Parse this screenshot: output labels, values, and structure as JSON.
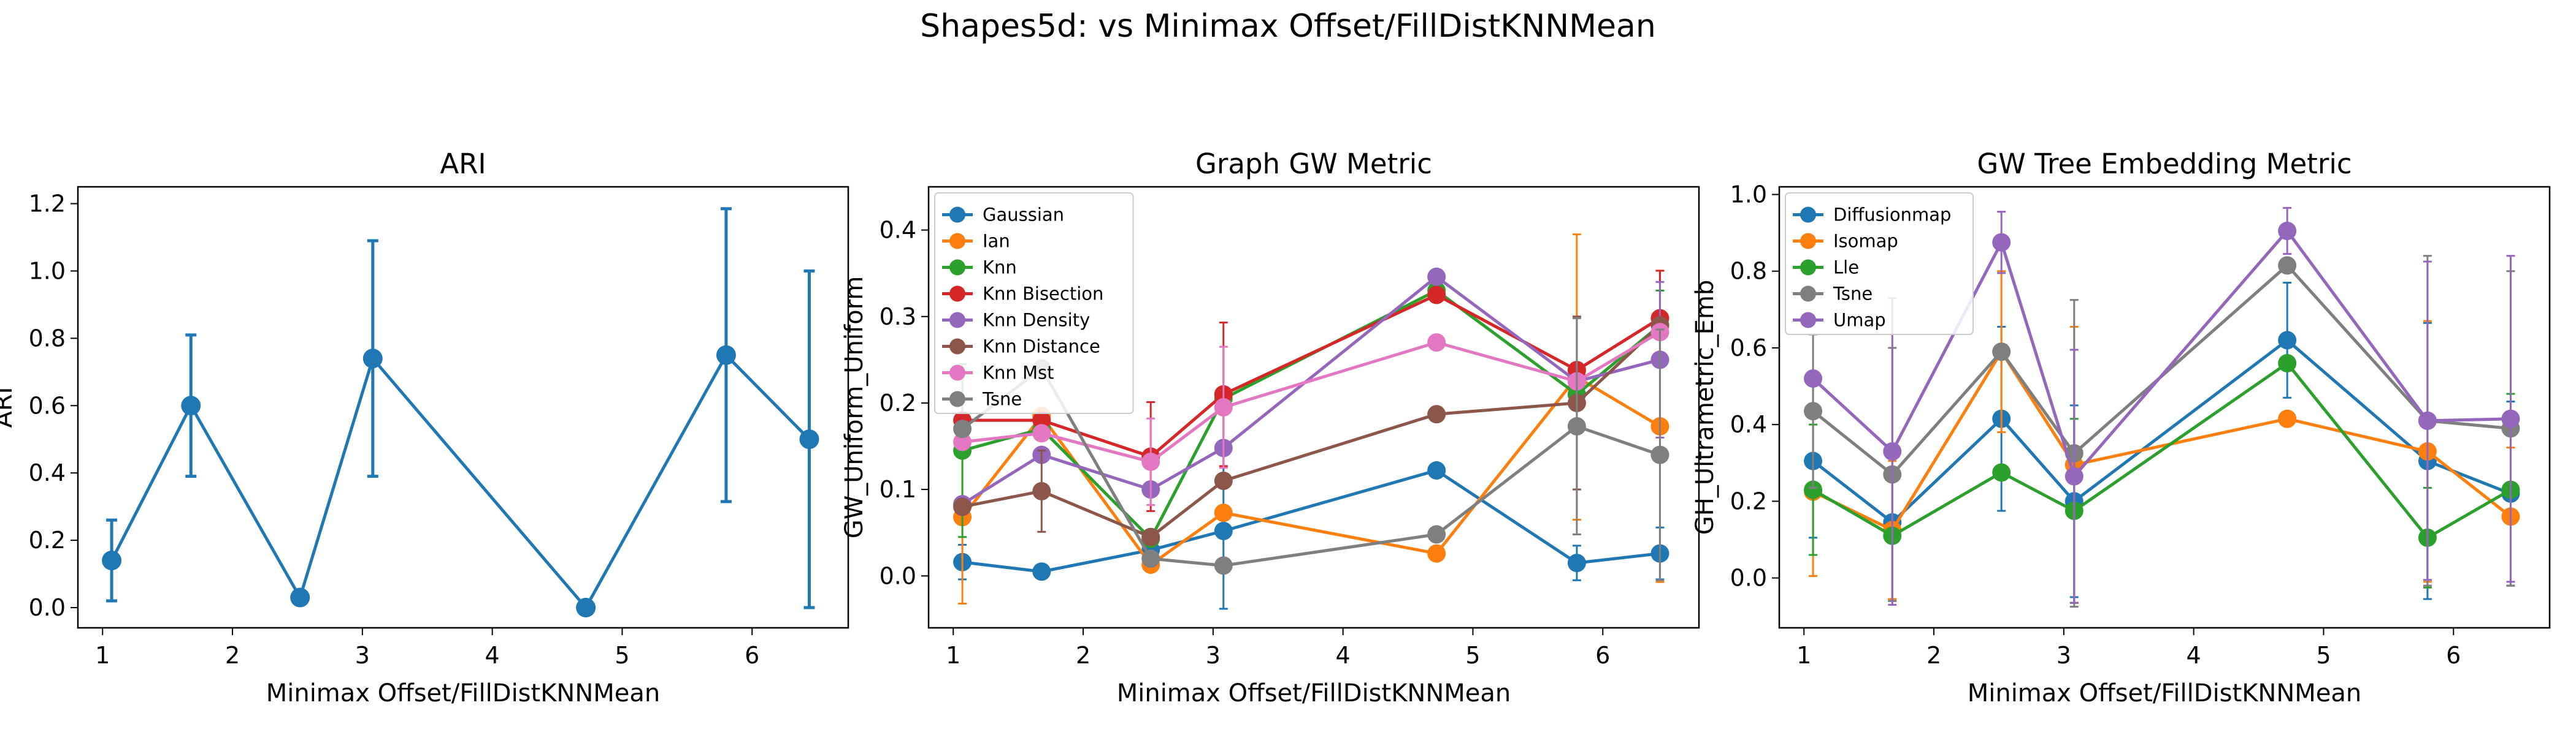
{
  "figure": {
    "title": "Shapes5d: vs Minimax Offset/FillDistKNNMean"
  },
  "colors": {
    "Gaussian": "#1f77b4",
    "Ian": "#ff7f0e",
    "Knn": "#2ca02c",
    "Knn Bisection": "#d62728",
    "Knn Density": "#9467bd",
    "Knn Distance": "#8c564b",
    "Knn Mst": "#e377c2",
    "Tsne": "#7f7f7f",
    "Diffusionmap": "#1f77b4",
    "Isomap": "#ff7f0e",
    "Lle": "#2ca02c",
    "Umap": "#9467bd",
    "single": "#1f77b4"
  },
  "chart_data": [
    {
      "type": "line",
      "title": "ARI",
      "xlabel": "Minimax Offset/FillDistKNNMean",
      "ylabel": "ARI",
      "xlim": [
        0.81,
        6.74
      ],
      "ylim": [
        -0.06,
        1.25
      ],
      "xticks": [
        1,
        2,
        3,
        4,
        5,
        6
      ],
      "yticks": [
        0.0,
        0.2,
        0.4,
        0.6,
        0.8,
        1.0,
        1.2
      ],
      "ytick_labels": [
        "0.0",
        "0.2",
        "0.4",
        "0.6",
        "0.8",
        "1.0",
        "1.2"
      ],
      "legend": null,
      "grid": false,
      "x": [
        1.07,
        1.68,
        2.52,
        3.08,
        4.72,
        5.8,
        6.44
      ],
      "series": [
        {
          "values": [
            0.14,
            0.6,
            0.03,
            0.74,
            0.0,
            0.75,
            0.5
          ],
          "err": [
            0.12,
            0.21,
            0.0,
            0.35,
            0.0,
            0.435,
            0.5
          ]
        }
      ]
    },
    {
      "type": "line",
      "title": "Graph GW Metric",
      "xlabel": "Minimax Offset/FillDistKNNMean",
      "ylabel": "GW_Uniform_Uniform",
      "xlim": [
        0.81,
        6.74
      ],
      "ylim": [
        -0.06,
        0.45
      ],
      "xticks": [
        1,
        2,
        3,
        4,
        5,
        6
      ],
      "yticks": [
        0.0,
        0.1,
        0.2,
        0.3,
        0.4
      ],
      "ytick_labels": [
        "0.0",
        "0.1",
        "0.2",
        "0.3",
        "0.4"
      ],
      "legend": "upper-left",
      "grid": false,
      "x": [
        1.07,
        1.68,
        2.52,
        3.08,
        4.72,
        5.8,
        6.44
      ],
      "series": [
        {
          "name": "Gaussian",
          "values": [
            0.016,
            0.005,
            0.03,
            0.052,
            0.122,
            0.015,
            0.026
          ],
          "err": [
            0.02,
            0.0,
            0.0,
            0.09,
            0.0,
            0.02,
            0.03
          ]
        },
        {
          "name": "Ian",
          "values": [
            0.068,
            0.185,
            0.013,
            0.073,
            0.026,
            0.23,
            0.173
          ],
          "err": [
            0.1,
            0.0,
            0.0,
            0.0,
            0.0,
            0.165,
            0.18
          ]
        },
        {
          "name": "Knn",
          "values": [
            0.145,
            0.17,
            0.043,
            0.205,
            0.33,
            0.21,
            0.29
          ],
          "err": [
            0.1,
            0.0,
            0.0,
            0.0,
            0.0,
            0.0,
            0.04
          ]
        },
        {
          "name": "Knn Bisection",
          "values": [
            0.18,
            0.18,
            0.138,
            0.21,
            0.325,
            0.238,
            0.298
          ],
          "err": [
            0.0,
            0.0,
            0.063,
            0.083,
            0.0,
            0.0,
            0.055
          ]
        },
        {
          "name": "Knn Density",
          "values": [
            0.083,
            0.14,
            0.1,
            0.148,
            0.346,
            0.225,
            0.25
          ],
          "err": [
            0.0,
            0.0,
            0.0,
            0.0,
            0.0,
            0.0,
            0.09
          ]
        },
        {
          "name": "Knn Distance",
          "values": [
            0.08,
            0.098,
            0.045,
            0.11,
            0.187,
            0.2,
            0.29
          ],
          "err": [
            0.0,
            0.047,
            0.0,
            0.0,
            0.0,
            0.1,
            0.0
          ]
        },
        {
          "name": "Knn Mst",
          "values": [
            0.155,
            0.165,
            0.132,
            0.195,
            0.27,
            0.225,
            0.282
          ],
          "err": [
            0.0,
            0.0,
            0.05,
            0.07,
            0.0,
            0.0,
            0.0
          ]
        },
        {
          "name": "Tsne",
          "values": [
            0.17,
            0.24,
            0.02,
            0.012,
            0.048,
            0.173,
            0.14
          ],
          "err": [
            0.0,
            0.0,
            0.0,
            0.0,
            0.0,
            0.125,
            0.145
          ]
        }
      ]
    },
    {
      "type": "line",
      "title": "GW Tree Embedding Metric",
      "xlabel": "Minimax Offset/FillDistKNNMean",
      "ylabel": "GH_Ultrametric_Emb",
      "xlim": [
        0.81,
        6.74
      ],
      "ylim": [
        -0.13,
        1.02
      ],
      "xticks": [
        1,
        2,
        3,
        4,
        5,
        6
      ],
      "yticks": [
        0.0,
        0.2,
        0.4,
        0.6,
        0.8,
        1.0
      ],
      "ytick_labels": [
        "0.0",
        "0.2",
        "0.4",
        "0.6",
        "0.8",
        "1.0"
      ],
      "legend": "upper-left",
      "grid": false,
      "x": [
        1.07,
        1.68,
        2.52,
        3.08,
        4.72,
        5.8,
        6.44
      ],
      "series": [
        {
          "name": "Diffusionmap",
          "values": [
            0.305,
            0.145,
            0.415,
            0.2,
            0.62,
            0.305,
            0.22
          ],
          "err": [
            0.2,
            0.0,
            0.24,
            0.25,
            0.15,
            0.36,
            0.24
          ]
        },
        {
          "name": "Isomap",
          "values": [
            0.225,
            0.125,
            0.59,
            0.295,
            0.415,
            0.33,
            0.16
          ],
          "err": [
            0.22,
            0.18,
            0.21,
            0.36,
            0.0,
            0.34,
            0.18
          ]
        },
        {
          "name": "Lle",
          "values": [
            0.23,
            0.11,
            0.275,
            0.175,
            0.56,
            0.105,
            0.23
          ],
          "err": [
            0.17,
            0.17,
            0.0,
            0.24,
            0.0,
            0.13,
            0.25
          ]
        },
        {
          "name": "Tsne",
          "values": [
            0.435,
            0.27,
            0.59,
            0.325,
            0.815,
            0.41,
            0.39
          ],
          "err": [
            0.2,
            0.33,
            0.0,
            0.4,
            0.0,
            0.43,
            0.41
          ]
        },
        {
          "name": "Umap",
          "values": [
            0.52,
            0.33,
            0.875,
            0.265,
            0.905,
            0.41,
            0.415
          ],
          "err": [
            0.0,
            0.4,
            0.08,
            0.33,
            0.06,
            0.415,
            0.425
          ]
        }
      ]
    }
  ]
}
